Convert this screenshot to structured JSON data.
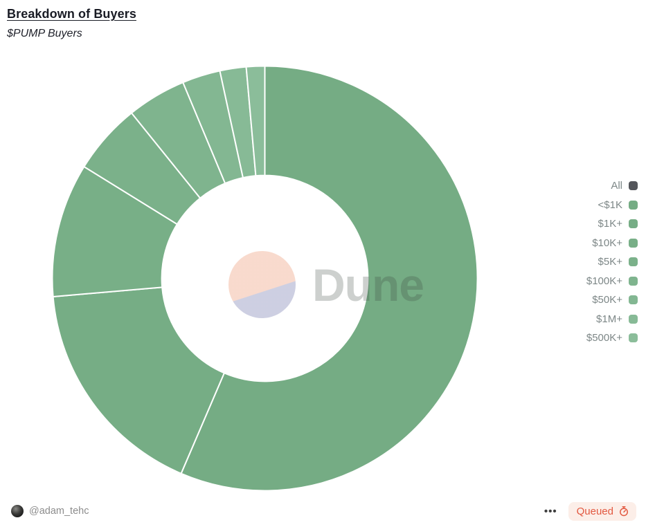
{
  "header": {
    "title": "Breakdown of Buyers",
    "subtitle": "$PUMP Buyers"
  },
  "chart_data": {
    "type": "pie",
    "donut": true,
    "title": "Breakdown of Buyers",
    "subtitle": "$PUMP Buyers",
    "start_angle": "12 o'clock",
    "direction": "clockwise",
    "inner_radius_ratio": 0.485,
    "values_unit": "percent of circle, estimated from arc angles (no numeric labels shown)",
    "categories": [
      "<$1K",
      "$1K+",
      "$10K+",
      "$5K+",
      "$100K+",
      "$50K+",
      "$1M+",
      "$500K+"
    ],
    "values": [
      56.5,
      17.2,
      10.2,
      5.4,
      4.5,
      2.9,
      2.0,
      1.4
    ],
    "colors": [
      "#75ac84",
      "#76ad85",
      "#78af87",
      "#7bb18a",
      "#7fb48e",
      "#83b792",
      "#87ba96",
      "#8bbd9a"
    ],
    "legend_position": "right",
    "legend": [
      {
        "label": "All",
        "color": "#54565b",
        "in_pie": false
      },
      {
        "label": "<$1K",
        "color": "#75ac84",
        "in_pie": true
      },
      {
        "label": "$1K+",
        "color": "#76ad85",
        "in_pie": true
      },
      {
        "label": "$10K+",
        "color": "#78af87",
        "in_pie": true
      },
      {
        "label": "$5K+",
        "color": "#7bb18a",
        "in_pie": true
      },
      {
        "label": "$100K+",
        "color": "#7fb48e",
        "in_pie": true
      },
      {
        "label": "$50K+",
        "color": "#83b792",
        "in_pie": true
      },
      {
        "label": "$1M+",
        "color": "#87ba96",
        "in_pie": true
      },
      {
        "label": "$500K+",
        "color": "#8bbd9a",
        "in_pie": true
      }
    ]
  },
  "watermark": {
    "text": "Dune",
    "logo": "dune-logo"
  },
  "footer": {
    "author": "@adam_tehc",
    "menu": "•••",
    "status": "Queued",
    "status_color": "#e25840",
    "status_bg": "#fceee8"
  }
}
